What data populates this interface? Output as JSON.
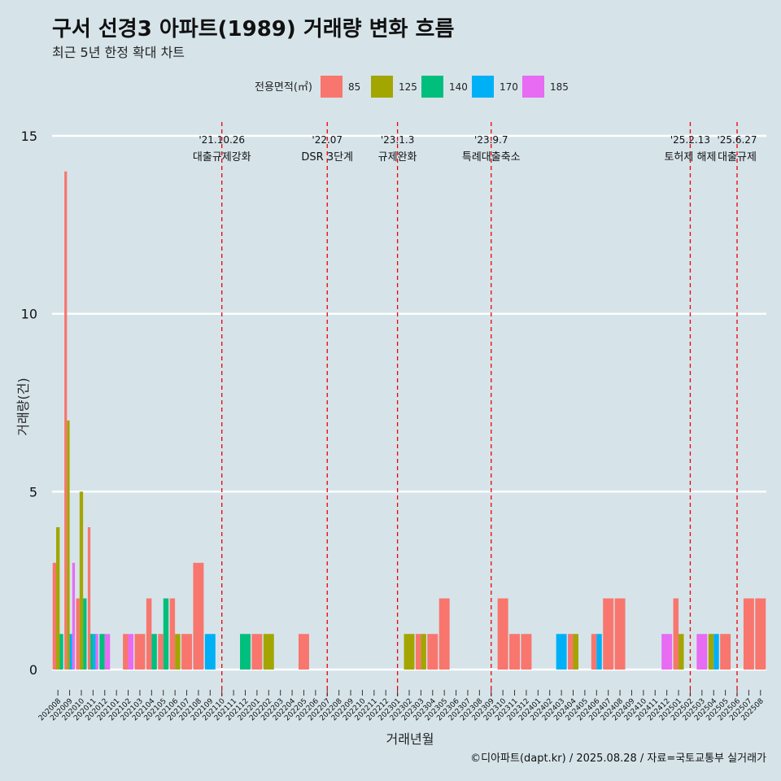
{
  "title": "구서 선경3 아파트(1989) 거래량 변화 흐름",
  "subtitle": "최근 5년 한정 확대 차트",
  "caption": "©디아파트(dapt.kr) / 2025.08.28 / 자료=국토교통부 실거래가",
  "chart_data": {
    "type": "bar",
    "xlabel": "거래년월",
    "ylabel": "거래량(건)",
    "ylim": [
      0,
      15
    ],
    "yticks": [
      0,
      5,
      10,
      15
    ],
    "grid": true,
    "legend": {
      "title": "전용면적(㎡)",
      "position": "top",
      "entries": [
        {
          "name": "85",
          "color": "#f8766d"
        },
        {
          "name": "125",
          "color": "#a3a500"
        },
        {
          "name": "140",
          "color": "#00bf7d"
        },
        {
          "name": "170",
          "color": "#00b0f6"
        },
        {
          "name": "185",
          "color": "#e76bf3"
        }
      ]
    },
    "categories": [
      "202008",
      "202009",
      "202010",
      "202011",
      "202012",
      "202101",
      "202102",
      "202103",
      "202104",
      "202105",
      "202106",
      "202107",
      "202108",
      "202109",
      "202110",
      "202111",
      "202112",
      "202201",
      "202202",
      "202203",
      "202204",
      "202205",
      "202206",
      "202207",
      "202208",
      "202209",
      "202210",
      "202211",
      "202212",
      "202301",
      "202302",
      "202303",
      "202304",
      "202305",
      "202306",
      "202307",
      "202308",
      "202309",
      "202310",
      "202311",
      "202312",
      "202401",
      "202402",
      "202403",
      "202404",
      "202405",
      "202406",
      "202407",
      "202408",
      "202409",
      "202410",
      "202411",
      "202412",
      "202501",
      "202502",
      "202503",
      "202504",
      "202505",
      "202506",
      "202507",
      "202508"
    ],
    "series": [
      {
        "name": "85",
        "values": [
          3,
          14,
          2,
          4,
          0,
          0,
          1,
          1,
          2,
          1,
          2,
          1,
          3,
          0,
          0,
          0,
          0,
          1,
          0,
          0,
          0,
          1,
          0,
          0,
          0,
          0,
          0,
          0,
          0,
          0,
          0,
          1,
          1,
          2,
          0,
          0,
          0,
          0,
          2,
          1,
          1,
          0,
          0,
          0,
          1,
          0,
          1,
          2,
          2,
          0,
          0,
          0,
          0,
          2,
          0,
          0,
          0,
          1,
          0,
          2,
          2
        ]
      },
      {
        "name": "125",
        "values": [
          4,
          7,
          5,
          0,
          0,
          0,
          0,
          0,
          0,
          0,
          1,
          0,
          0,
          0,
          0,
          0,
          0,
          0,
          1,
          0,
          0,
          0,
          0,
          0,
          0,
          0,
          0,
          0,
          0,
          0,
          1,
          1,
          0,
          0,
          0,
          0,
          0,
          0,
          0,
          0,
          0,
          0,
          0,
          0,
          1,
          0,
          0,
          0,
          0,
          0,
          0,
          0,
          0,
          1,
          0,
          0,
          1,
          0,
          0,
          0,
          0
        ]
      },
      {
        "name": "140",
        "values": [
          1,
          0,
          2,
          1,
          1,
          0,
          0,
          0,
          1,
          2,
          0,
          0,
          0,
          0,
          0,
          0,
          1,
          0,
          0,
          0,
          0,
          0,
          0,
          0,
          0,
          0,
          0,
          0,
          0,
          0,
          0,
          0,
          0,
          0,
          0,
          0,
          0,
          0,
          0,
          0,
          0,
          0,
          0,
          0,
          0,
          0,
          0,
          0,
          0,
          0,
          0,
          0,
          0,
          0,
          0,
          0,
          0,
          0,
          0,
          0,
          0
        ]
      },
      {
        "name": "170",
        "values": [
          0,
          1,
          0,
          1,
          0,
          0,
          0,
          0,
          0,
          0,
          0,
          0,
          0,
          1,
          0,
          0,
          0,
          0,
          0,
          0,
          0,
          0,
          0,
          0,
          0,
          0,
          0,
          0,
          0,
          0,
          0,
          0,
          0,
          0,
          0,
          0,
          0,
          0,
          0,
          0,
          0,
          0,
          0,
          1,
          0,
          0,
          1,
          0,
          0,
          0,
          0,
          0,
          0,
          0,
          0,
          0,
          1,
          0,
          0,
          0,
          0
        ]
      },
      {
        "name": "185",
        "values": [
          0,
          3,
          0,
          1,
          1,
          0,
          1,
          0,
          0,
          0,
          0,
          0,
          0,
          0,
          0,
          0,
          0,
          0,
          0,
          0,
          0,
          0,
          0,
          0,
          0,
          0,
          0,
          0,
          0,
          0,
          0,
          0,
          0,
          0,
          0,
          0,
          0,
          0,
          0,
          0,
          0,
          0,
          0,
          0,
          0,
          0,
          0,
          0,
          0,
          0,
          0,
          0,
          1,
          0,
          0,
          1,
          0,
          0,
          0,
          0,
          0
        ]
      }
    ],
    "events": [
      {
        "date": "'21.10.26",
        "label": "대출규제강화",
        "x": "202110"
      },
      {
        "date": "'22.07",
        "label": "DSR 3단계",
        "x": "202207"
      },
      {
        "date": "'23.1.3",
        "label": "규제완화",
        "x": "202301"
      },
      {
        "date": "'23.9.7",
        "label": "특례대출축소",
        "x": "202309"
      },
      {
        "date": "'25.2.13",
        "label": "토허제 해제",
        "x": "202502"
      },
      {
        "date": "'25.6.27",
        "label": "대출규제",
        "x": "202506"
      }
    ]
  }
}
